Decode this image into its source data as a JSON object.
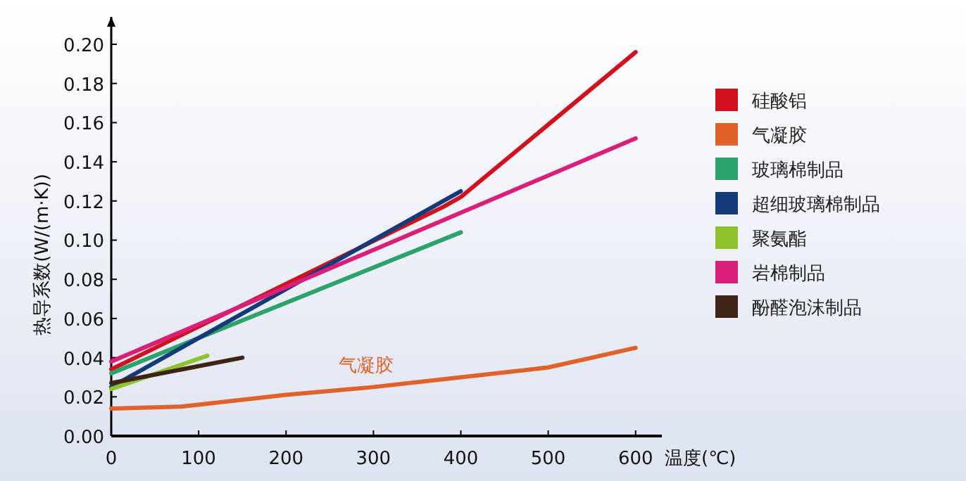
{
  "chart_data": {
    "type": "line",
    "xlabel": "温度(℃)",
    "ylabel": "热导系数(W/(m·K))",
    "xlim": [
      0,
      630
    ],
    "xticks": [
      0,
      100,
      200,
      300,
      400,
      500,
      600
    ],
    "ylim": [
      0,
      0.214
    ],
    "yticks": [
      {
        "value": 0,
        "label": "0.00"
      },
      {
        "value": 0.02,
        "label": "0.02"
      },
      {
        "value": 0.04,
        "label": "0.04"
      },
      {
        "value": 0.06,
        "label": "0.06"
      },
      {
        "value": 0.08,
        "label": "0.08"
      },
      {
        "value": 0.1,
        "label": "0.10"
      },
      {
        "value": 0.12,
        "label": "0.12"
      },
      {
        "value": 0.14,
        "label": "0.14"
      },
      {
        "value": 0.16,
        "label": "0.16"
      },
      {
        "value": 0.18,
        "label": "0.18"
      },
      {
        "value": 0.2,
        "label": "0.20"
      }
    ],
    "series": [
      {
        "name": "硅酸铝",
        "color": "#d0121f",
        "x": [
          0,
          380,
          400,
          600
        ],
        "values": [
          0.034,
          0.117,
          0.122,
          0.196
        ]
      },
      {
        "name": "气凝胶",
        "color": "#e0622a",
        "x": [
          0,
          80,
          200,
          300,
          400,
          500,
          600
        ],
        "values": [
          0.014,
          0.015,
          0.021,
          0.025,
          0.03,
          0.035,
          0.045
        ]
      },
      {
        "name": "玻璃棉制品",
        "color": "#2ba36b",
        "x": [
          0,
          400
        ],
        "values": [
          0.032,
          0.104
        ]
      },
      {
        "name": "超细玻璃棉制品",
        "color": "#143b77",
        "x": [
          0,
          400
        ],
        "values": [
          0.025,
          0.125
        ]
      },
      {
        "name": "聚氨酯",
        "color": "#8dc22a",
        "x": [
          0,
          110
        ],
        "values": [
          0.024,
          0.041
        ]
      },
      {
        "name": "岩棉制品",
        "color": "#d91f7a",
        "x": [
          0,
          600
        ],
        "values": [
          0.038,
          0.152
        ]
      },
      {
        "name": "酚醛泡沫制品",
        "color": "#3f2317",
        "x": [
          0,
          150
        ],
        "values": [
          0.027,
          0.04
        ]
      }
    ],
    "annotations": [
      "气凝胶"
    ],
    "legend": "right",
    "grid": false,
    "marker": "none",
    "line_style": "solid"
  }
}
